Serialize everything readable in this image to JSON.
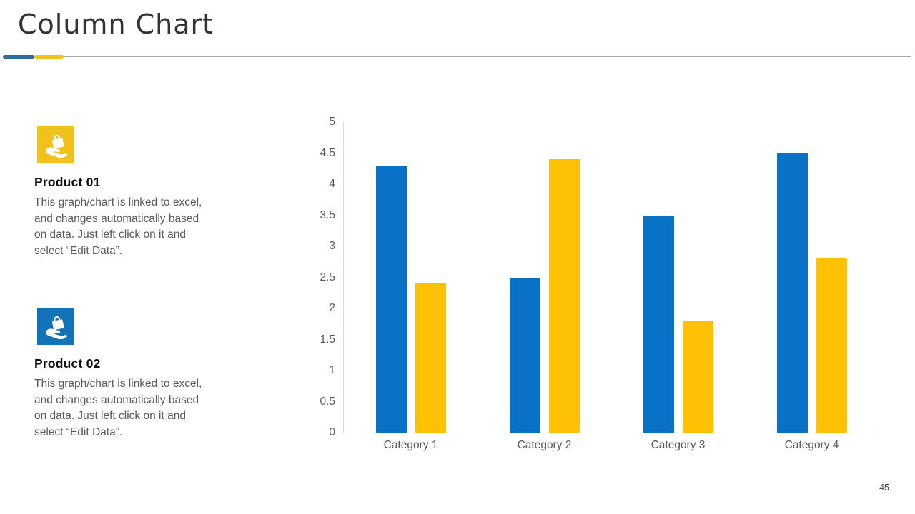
{
  "title": "Column Chart",
  "page_number": "45",
  "divider": {
    "blue": "#2b6ca3",
    "yellow": "#efc31b",
    "line": "#a6a6a6"
  },
  "products": [
    {
      "name": "Product 01",
      "tile_color": "#f2c11b",
      "icon": "hand-holding-bag-icon",
      "lines": [
        "This graph/chart is linked to excel,",
        "and changes automatically based",
        "on data. Just left click on it and",
        "select “Edit Data”."
      ]
    },
    {
      "name": "Product 02",
      "tile_color": "#1273b8",
      "icon": "hand-holding-bag-icon",
      "lines": [
        "This graph/chart is linked to excel,",
        "and changes automatically based",
        "on data. Just left click on it and",
        "select “Edit Data”."
      ]
    }
  ],
  "chart_data": {
    "type": "bar",
    "title": "",
    "categories": [
      "Category 1",
      "Category 2",
      "Category 3",
      "Category 4"
    ],
    "series": [
      {
        "name": "Product 01",
        "color": "#0972c6",
        "values": [
          4.3,
          2.5,
          3.5,
          4.5
        ]
      },
      {
        "name": "Product 02",
        "color": "#ffc103",
        "values": [
          2.4,
          4.4,
          1.8,
          2.8
        ]
      }
    ],
    "ylim": [
      0,
      5
    ],
    "ytick_step": 0.5,
    "grid": false,
    "legend": "none",
    "axis_line_color": "#d9d9d9",
    "tick_label_color": "#595959"
  }
}
